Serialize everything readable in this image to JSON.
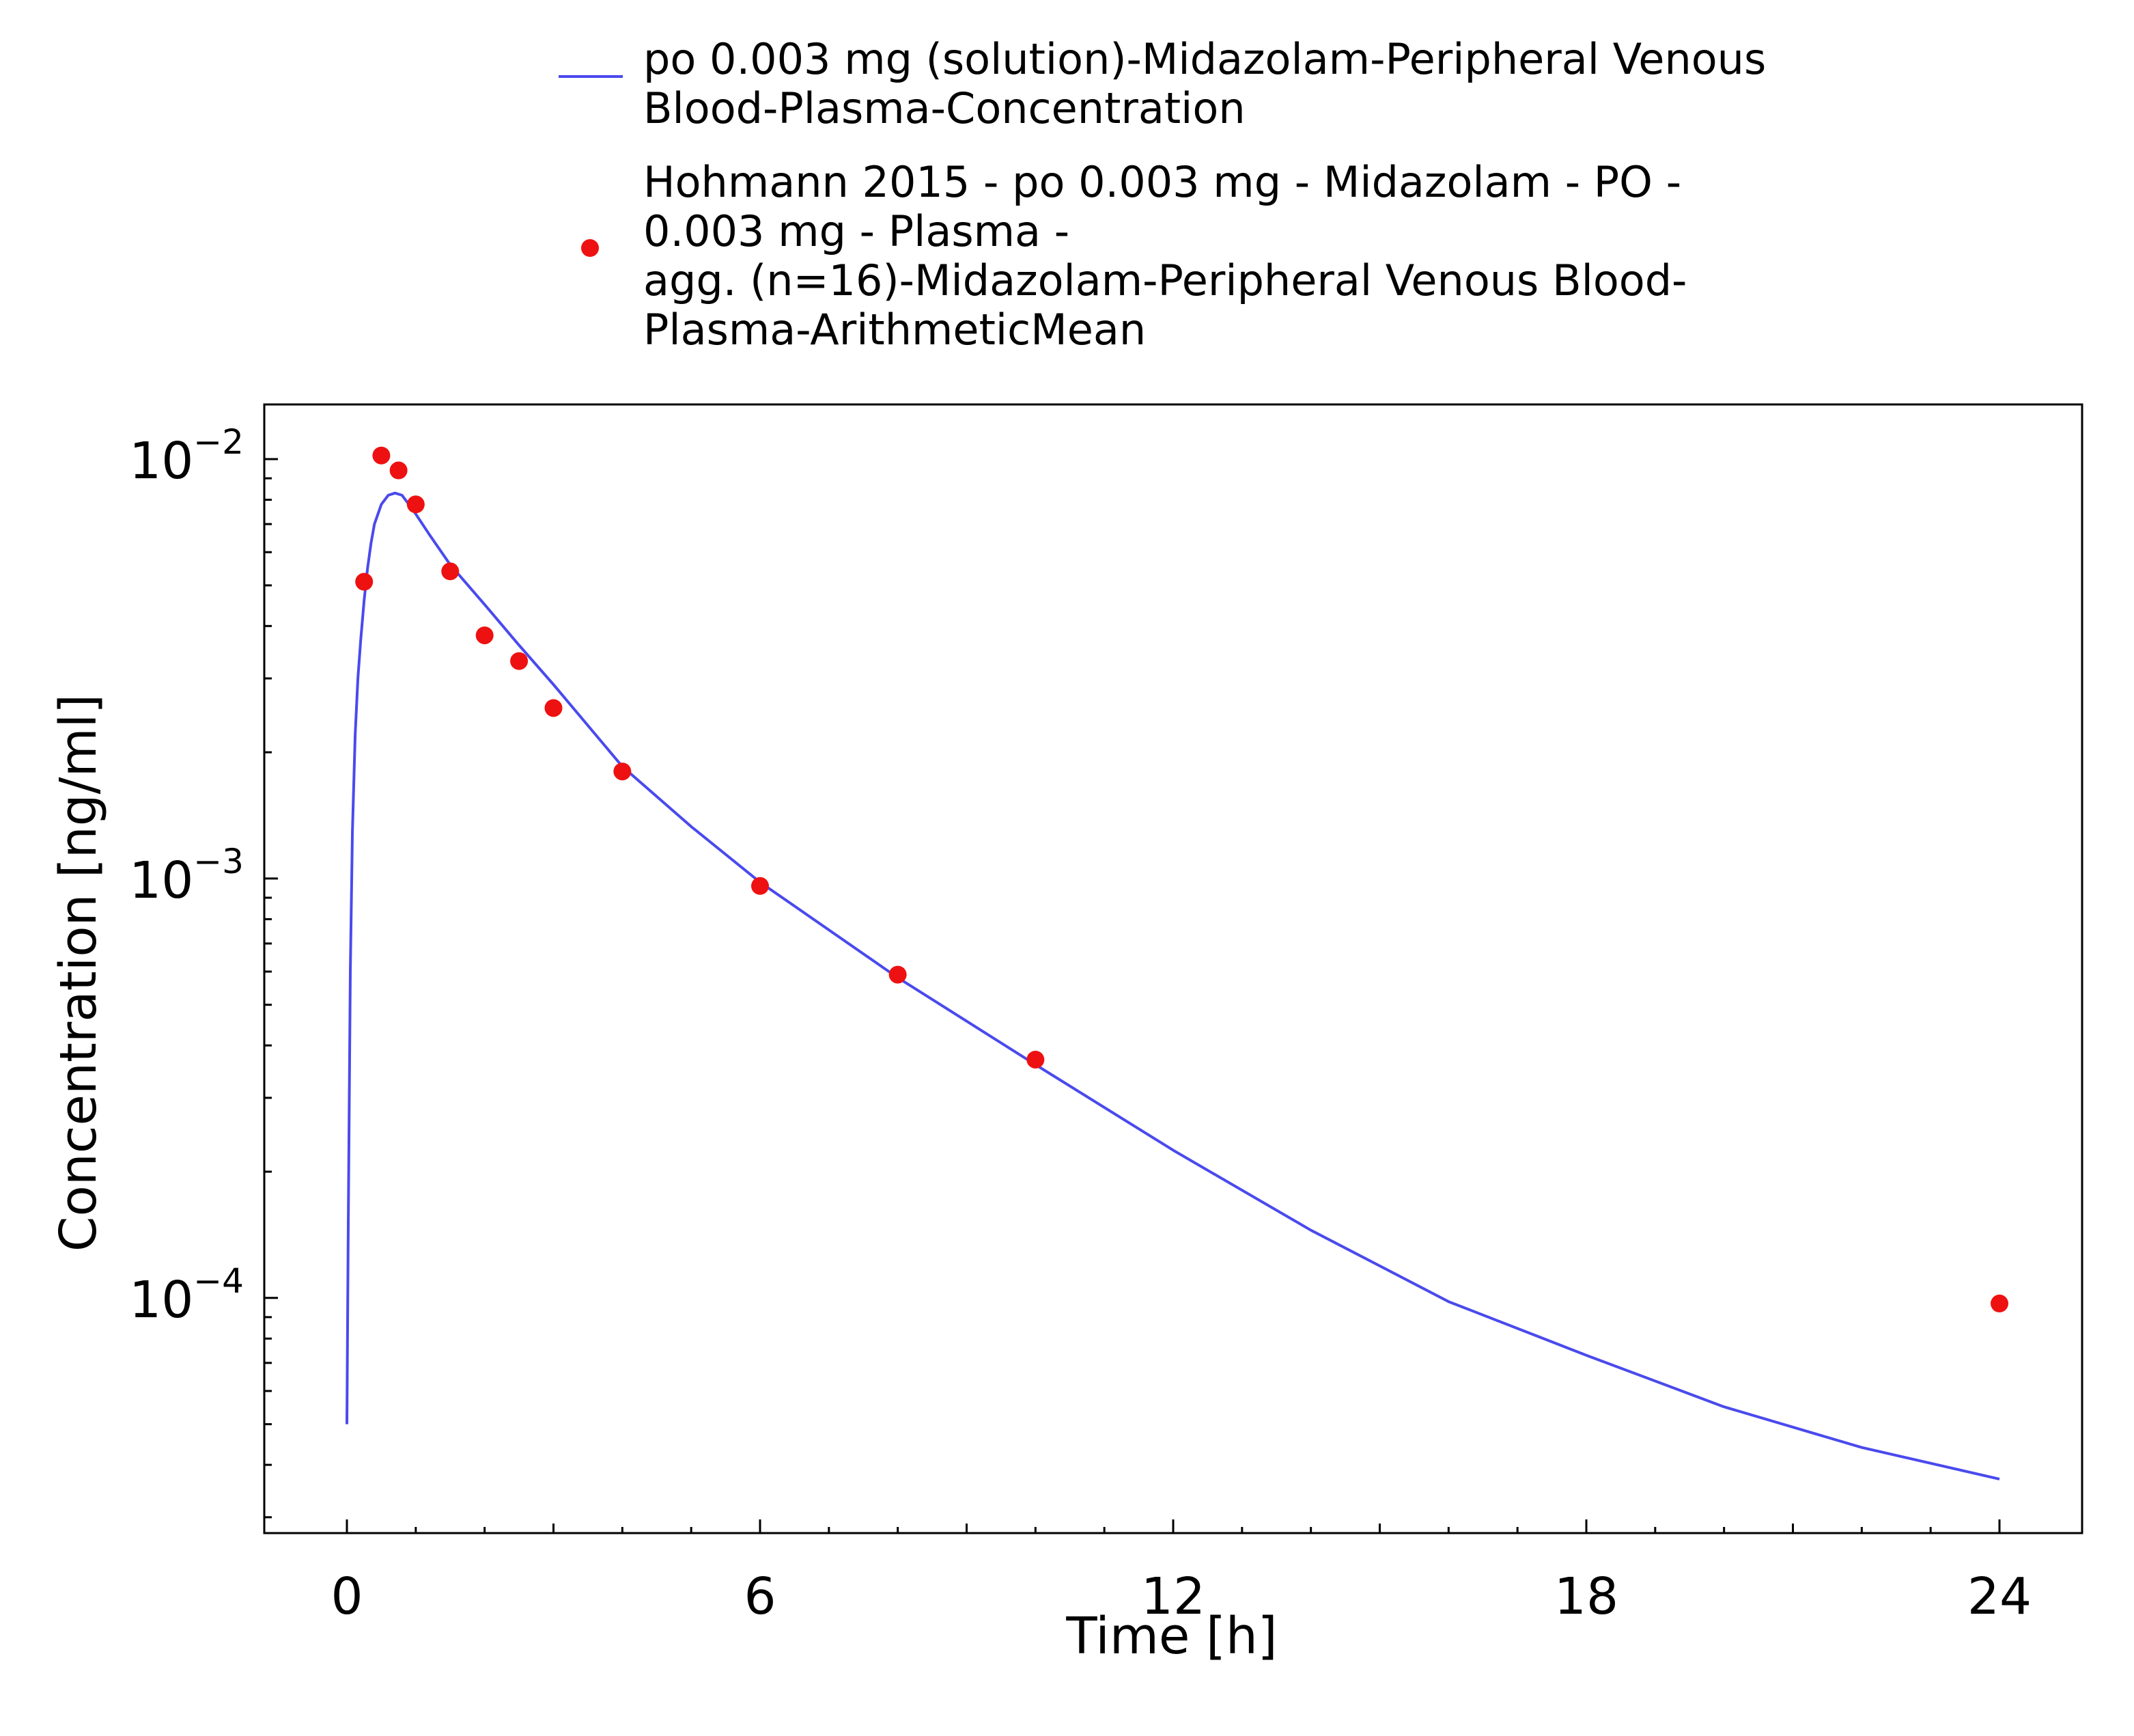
{
  "chart_data": {
    "type": "line",
    "xlabel": "Time [h]",
    "ylabel": "Concentration [ng/ml]",
    "xlim": [
      -1.2,
      25.2
    ],
    "ylim": [
      2.75e-05,
      0.0135
    ],
    "yscale": "log",
    "xticks": [
      0,
      6,
      12,
      18,
      24
    ],
    "xtick_labels": [
      "0",
      "6",
      "12",
      "18",
      "24"
    ],
    "yticks": [
      0.01,
      0.001,
      0.0001
    ],
    "ytick_labels": [
      {
        "base": "10",
        "exp": "−2"
      },
      {
        "base": "10",
        "exp": "−3"
      },
      {
        "base": "10",
        "exp": "−4"
      }
    ],
    "grid": false,
    "legend_position": "top",
    "colors": {
      "simulation": "#4a4aee",
      "observed": "#ee1111"
    },
    "series": [
      {
        "name": "po 0.003 mg (solution)-Midazolam-Peripheral Venous Blood-Plasma-Concentration",
        "legend_lines": [
          "po 0.003 mg (solution)-Midazolam-Peripheral Venous",
          "Blood-Plasma-Concentration"
        ],
        "kind": "line",
        "x": [
          0.0,
          0.02,
          0.05,
          0.08,
          0.12,
          0.16,
          0.2,
          0.25,
          0.3,
          0.35,
          0.4,
          0.5,
          0.6,
          0.7,
          0.8,
          0.9,
          1.0,
          1.2,
          1.5,
          2.0,
          2.5,
          3.0,
          4.0,
          5.0,
          6.0,
          8.0,
          10.0,
          12.0,
          14.0,
          16.0,
          18.0,
          20.0,
          22.0,
          24.0
        ],
        "y": [
          5e-05,
          0.00015,
          0.0006,
          0.0013,
          0.0022,
          0.003,
          0.0037,
          0.0046,
          0.0055,
          0.0063,
          0.007,
          0.0078,
          0.0082,
          0.0083,
          0.0082,
          0.0078,
          0.0074,
          0.0066,
          0.0056,
          0.0045,
          0.0036,
          0.0029,
          0.00185,
          0.00133,
          0.00098,
          0.00058,
          0.00036,
          0.000225,
          0.000145,
          9.8e-05,
          7.3e-05,
          5.5e-05,
          4.4e-05,
          3.7e-05
        ]
      },
      {
        "name": "Hohmann 2015 - po 0.003 mg - Midazolam - PO - 0.003 mg - Plasma - agg. (n=16)-Midazolam-Peripheral Venous Blood-Plasma-ArithmeticMean",
        "legend_lines": [
          "Hohmann 2015 - po 0.003 mg - Midazolam - PO -",
          "0.003 mg - Plasma -",
          "agg. (n=16)-Midazolam-Peripheral Venous Blood-",
          "Plasma-ArithmeticMean"
        ],
        "kind": "scatter",
        "x": [
          0.25,
          0.5,
          0.75,
          1.0,
          1.5,
          2.0,
          2.5,
          3.0,
          4.0,
          6.0,
          8.0,
          10.0,
          24.0
        ],
        "y": [
          0.0051,
          0.0102,
          0.0094,
          0.0078,
          0.0054,
          0.0038,
          0.0033,
          0.00255,
          0.0018,
          0.00096,
          0.00059,
          0.00037,
          9.7e-05
        ]
      }
    ]
  }
}
